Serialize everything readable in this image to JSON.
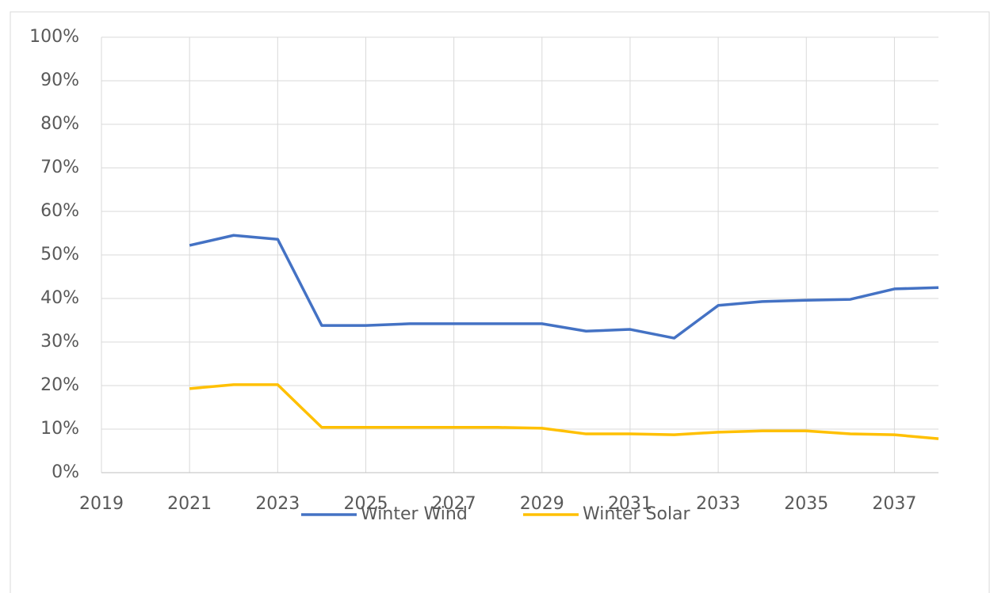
{
  "chart_data": {
    "type": "line",
    "x": [
      2021,
      2022,
      2023,
      2024,
      2025,
      2026,
      2027,
      2028,
      2029,
      2030,
      2031,
      2032,
      2033,
      2034,
      2035,
      2036,
      2037,
      2038
    ],
    "series": [
      {
        "name": "Winter Wind",
        "color": "#4472c4",
        "values": [
          52.2,
          54.5,
          53.6,
          33.8,
          33.8,
          34.2,
          34.2,
          34.2,
          34.2,
          32.5,
          32.9,
          30.9,
          38.4,
          39.3,
          39.6,
          39.8,
          42.2,
          42.5
        ]
      },
      {
        "name": "Winter Solar",
        "color": "#ffc000",
        "values": [
          19.3,
          20.2,
          20.2,
          10.4,
          10.4,
          10.4,
          10.4,
          10.4,
          10.2,
          8.9,
          8.9,
          8.7,
          9.3,
          9.6,
          9.6,
          8.9,
          8.7,
          7.8
        ]
      }
    ],
    "xlim": [
      2019,
      2038
    ],
    "xticks": [
      2019,
      2021,
      2023,
      2025,
      2027,
      2029,
      2031,
      2033,
      2035,
      2037
    ],
    "ylim": [
      0,
      100
    ],
    "yticks": [
      {
        "value": 0,
        "label": "0%"
      },
      {
        "value": 10,
        "label": "10%"
      },
      {
        "value": 20,
        "label": "20%"
      },
      {
        "value": 30,
        "label": "30%"
      },
      {
        "value": 40,
        "label": "40%"
      },
      {
        "value": 50,
        "label": "50%"
      },
      {
        "value": 60,
        "label": "60%"
      },
      {
        "value": 70,
        "label": "70%"
      },
      {
        "value": 80,
        "label": "80%"
      },
      {
        "value": 90,
        "label": "90%"
      },
      {
        "value": 100,
        "label": "100%"
      }
    ],
    "grid": true,
    "legend": "bottom"
  }
}
